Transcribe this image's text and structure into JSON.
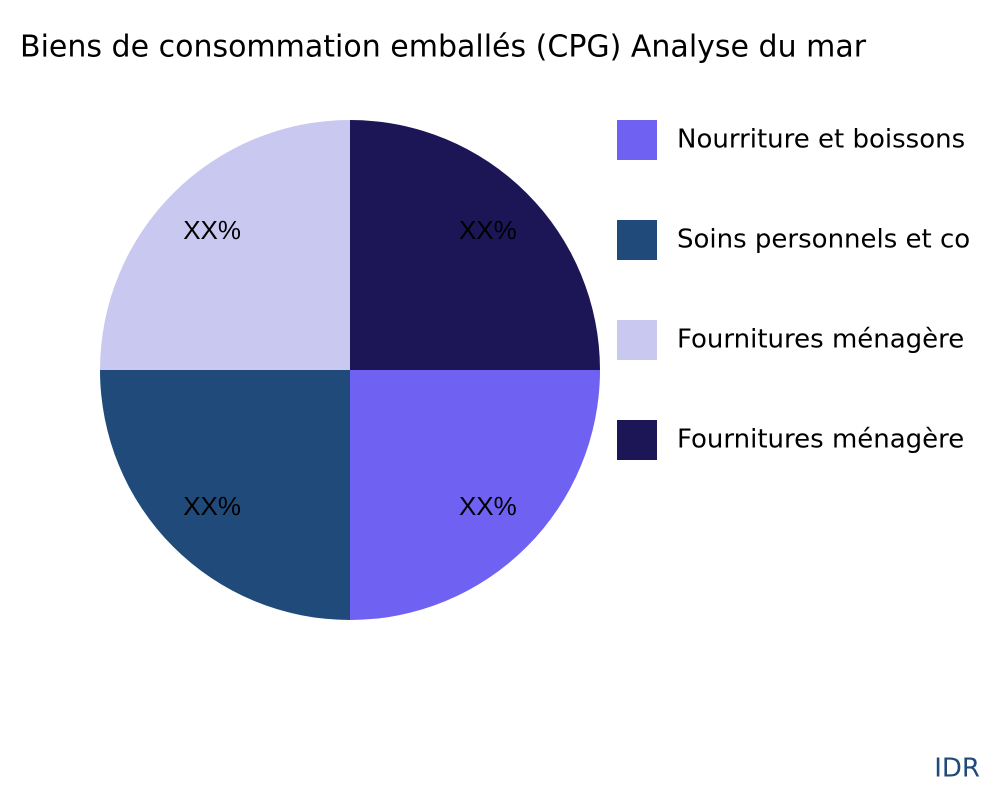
{
  "chart_data": {
    "type": "pie",
    "title": "Biens de consommation emballés (CPG) Analyse du mar",
    "categories": [
      "Nourriture et boissons",
      "Soins personnels et co",
      "Fournitures ménagère",
      "Fournitures ménagère"
    ],
    "values": [
      25,
      25,
      25,
      25
    ],
    "value_labels": [
      "XX%",
      "XX%",
      "XX%",
      "XX%"
    ],
    "colors": [
      "#6f61f2",
      "#1f4a7a",
      "#c9c8f0",
      "#1c1657"
    ],
    "legend": "right",
    "annotation": "IDR"
  }
}
